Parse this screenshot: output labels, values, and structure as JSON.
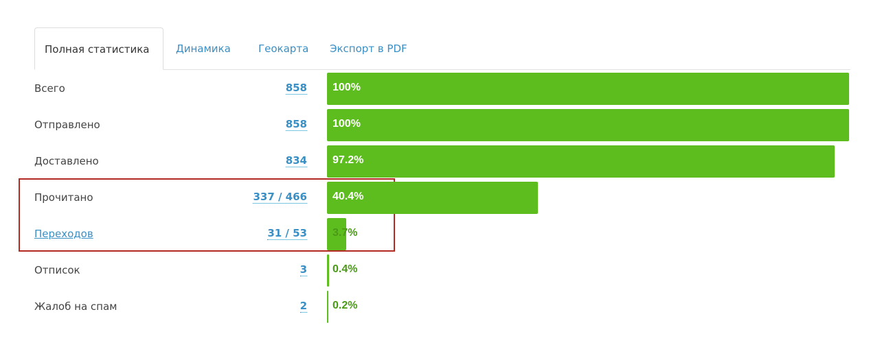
{
  "tabs": [
    "Полная статистика",
    "Динамика",
    "Геокарта",
    "Экспорт в PDF"
  ],
  "rows": [
    {
      "label": "Всего",
      "count": "858",
      "percent_value": 100,
      "percent_label": "100%"
    },
    {
      "label": "Отправлено",
      "count": "858",
      "percent_value": 100,
      "percent_label": "100%"
    },
    {
      "label": "Доставлено",
      "count": "834",
      "percent_value": 97.2,
      "percent_label": "97.2%"
    },
    {
      "label": "Прочитано",
      "count": "337 / 466",
      "percent_value": 40.4,
      "percent_label": "40.4%"
    },
    {
      "label": "Переходов",
      "count": "31 / 53",
      "percent_value": 3.7,
      "percent_label": "3.7%"
    },
    {
      "label": "Отписок",
      "count": "3",
      "percent_value": 0.4,
      "percent_label": "0.4%"
    },
    {
      "label": "Жалоб на спам",
      "count": "2",
      "percent_value": 0.2,
      "percent_label": "0.2%"
    }
  ]
}
